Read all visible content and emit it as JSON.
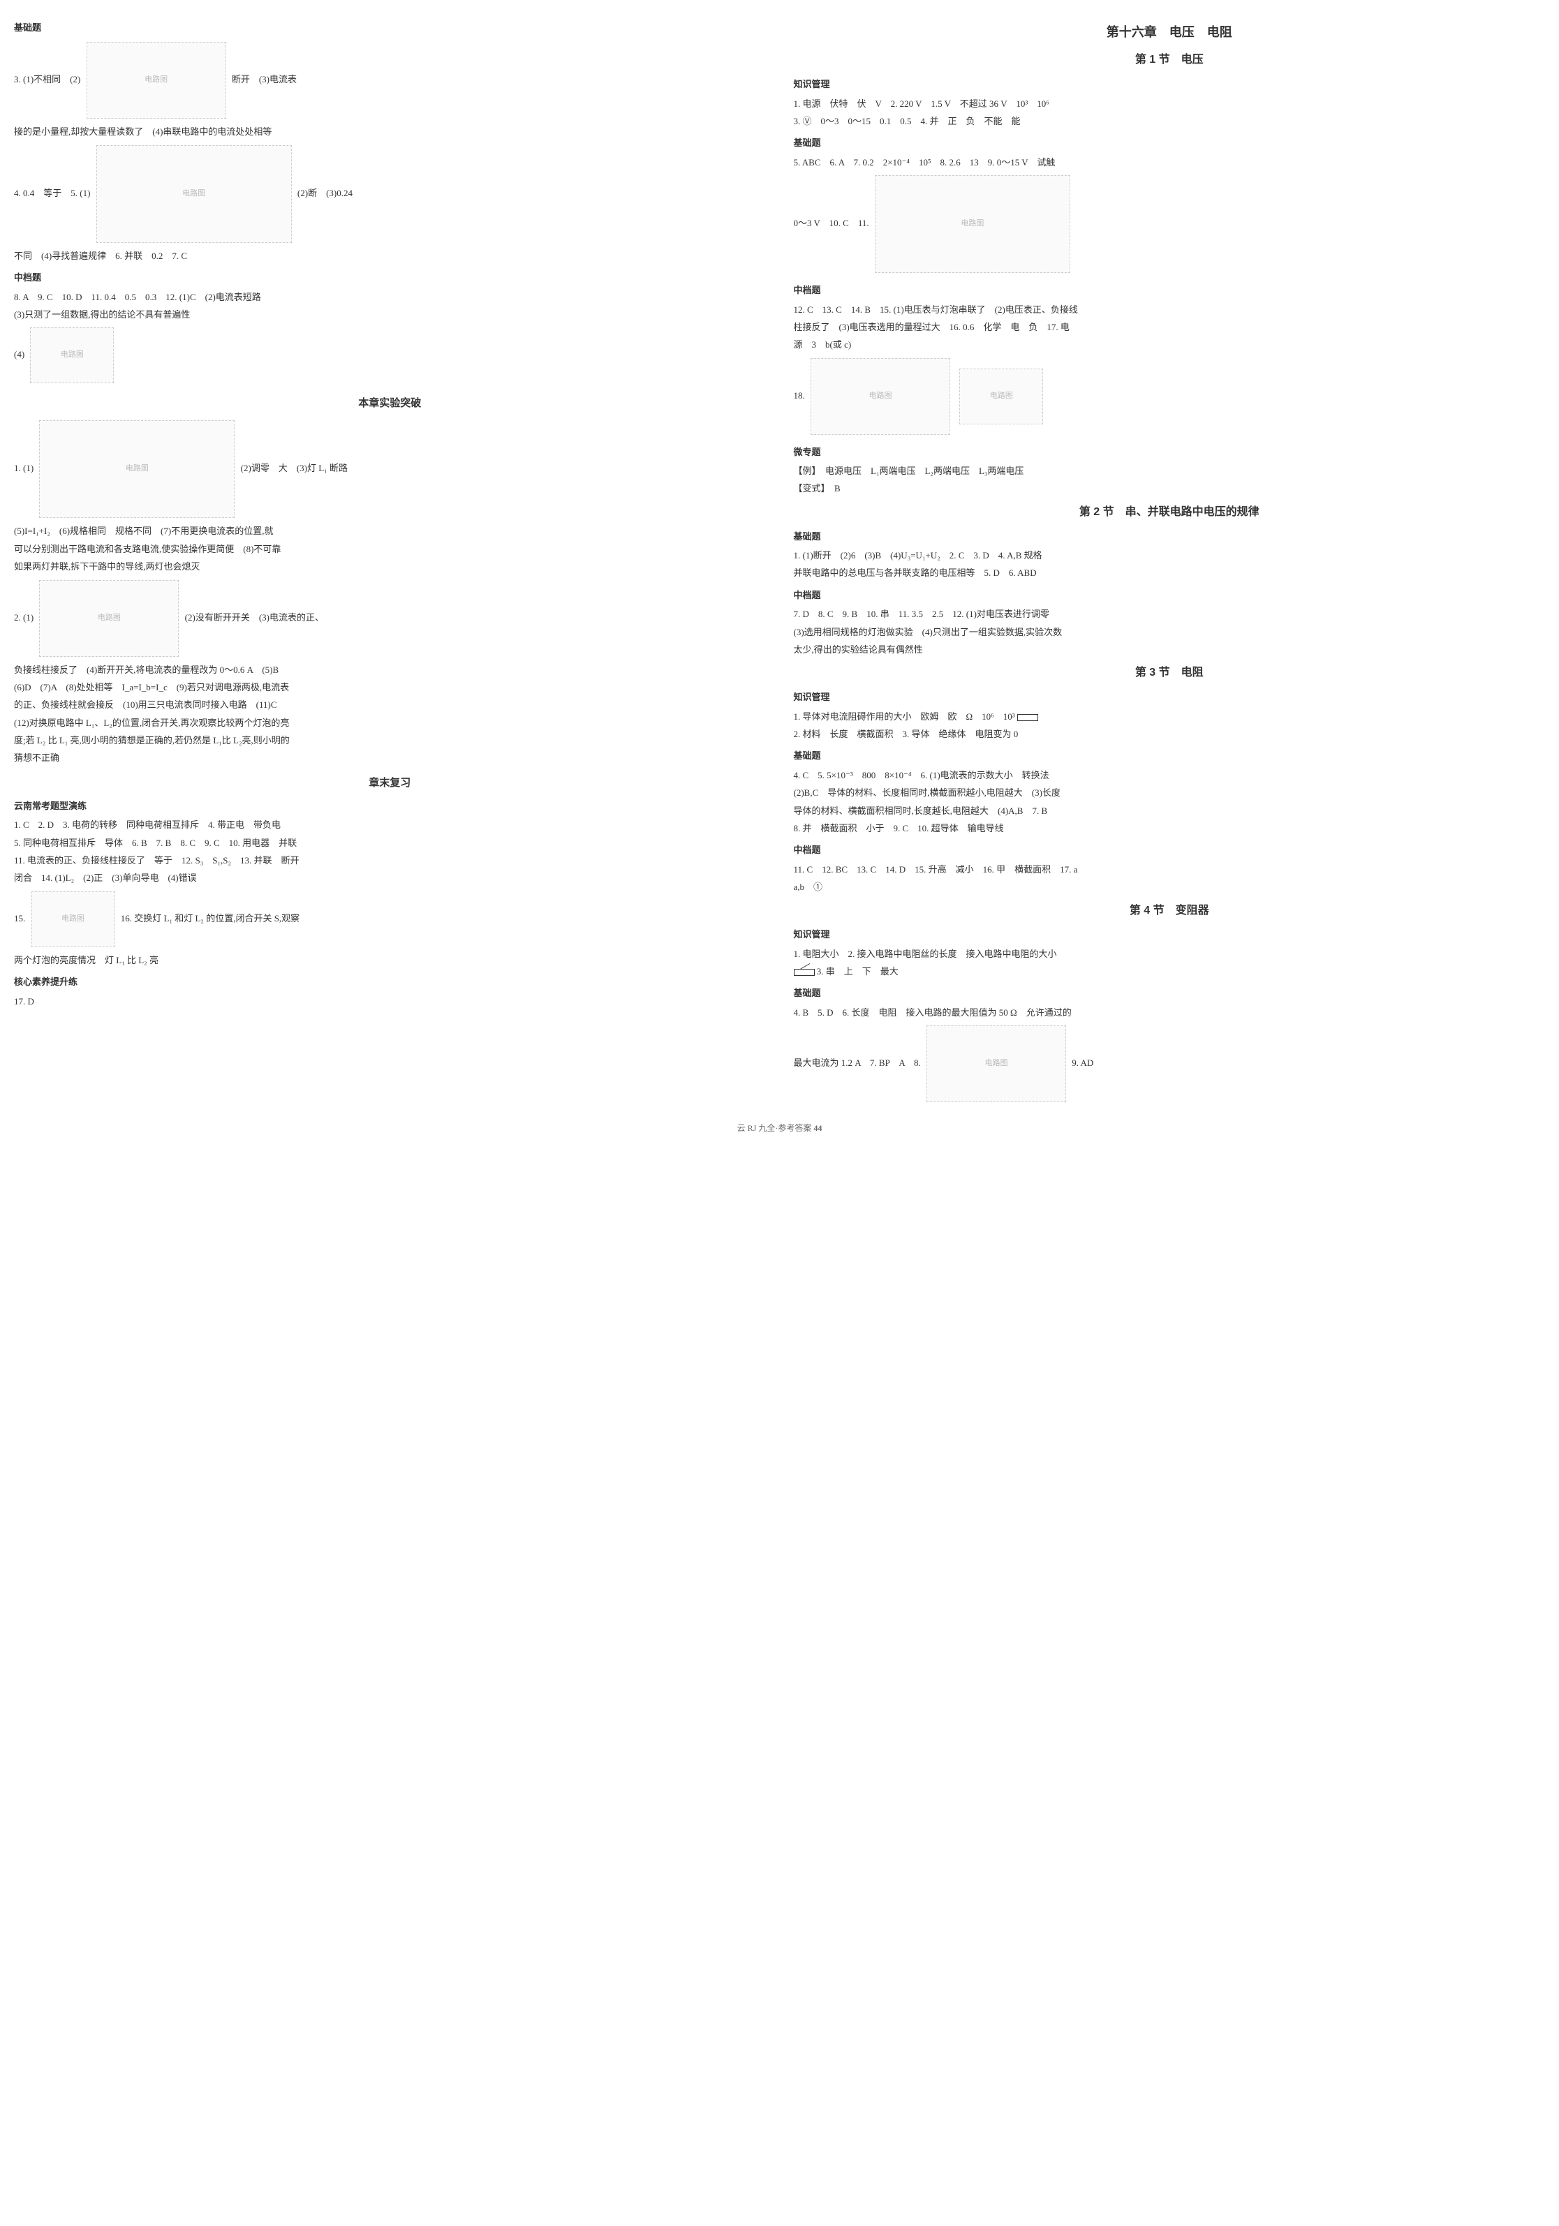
{
  "left_column": {
    "section_jichu": "基础题",
    "q3_part1": "3. (1)不相同　(2)",
    "q3_part2": "断开　(3)电流表",
    "q3_line2": "接的是小量程,却按大量程读数了　(4)串联电路中的电流处处相等",
    "q4_5": "4. 0.4　等于　5. (1)",
    "q5_part2": "(2)断　(3)0.24",
    "q5_line2": "不同　(4)寻找普遍规律　6. 并联　0.2　7. C",
    "section_zhongdang": "中档题",
    "q8_11": "8. A　9. C　10. D　11. 0.4　0.5　0.3　12. (1)C　(2)电流表短路",
    "q12_line2": "(3)只测了一组数据,得出的结论不具有普遍性",
    "q12_line3": "(4)",
    "experiment_title": "本章实验突破",
    "exp1_part1": "1. (1)",
    "exp1_part2": "(2)调零　大　(3)灯 L₁ 断路",
    "exp1_line2": "(5)I=I₁+I₂　(6)规格相同　规格不同　(7)不用更换电流表的位置,就",
    "exp1_line3": "可以分别测出干路电流和各支路电流,使实验操作更简便　(8)不可靠",
    "exp1_line4": "如果两灯并联,拆下干路中的导线,两灯也会熄灭",
    "exp2_part1": "2. (1)",
    "exp2_part2": "(2)没有断开开关　(3)电流表的正、",
    "exp2_line2": "负接线柱接反了　(4)断开开关,将电流表的量程改为 0～0.6 A　(5)B",
    "exp2_line3": "(6)D　(7)A　(8)处处相等　I_a=I_b=I_c　(9)若只对调电源两极,电流表",
    "exp2_line4": "的正、负接线柱就会接反　(10)用三只电流表同时接入电路　(11)C",
    "exp2_line5": "(12)对换原电路中 L₁、L₂的位置,闭合开关,再次观察比较两个灯泡的亮",
    "exp2_line6": "度;若 L₂ 比 L₁ 亮,则小明的猜想是正确的,若仍然是 L₁比 L₂亮,则小明的",
    "exp2_line7": "猜想不正确",
    "review_title": "章末复习",
    "section_yunnan": "云南常考题型演练",
    "rev1": "1. C　2. D　3. 电荷的转移　同种电荷相互排斥　4. 带正电　带负电",
    "rev2": "5. 同种电荷相互排斥　导体　6. B　7. B　8. C　9. C　10. 用电器　并联",
    "rev3": "11. 电流表的正、负接线柱接反了　等于　12. S₃　S₁,S₂　13. 并联　断开",
    "rev4": "闭合　14. (1)L₂　(2)正　(3)单向导电　(4)错误",
    "rev15": "15.",
    "rev16": "16. 交换灯 L₁ 和灯 L₂ 的位置,闭合开关 S,观察",
    "rev16_line2": "两个灯泡的亮度情况　灯 L₁ 比 L₂ 亮",
    "section_hexin": "核心素养提升练",
    "q17": "17. D"
  },
  "right_column": {
    "chapter_title": "第十六章　电压　电阻",
    "sub1_title": "第 1 节　电压",
    "section_zhishi1": "知识管理",
    "k1_line1": "1. 电源　伏特　伏　V　2. 220 V　1.5 V　不超过 36 V　10³　10⁶",
    "k1_line2": "3. Ⓥ　0～3　0～15　0.1　0.5　4. 并　正　负　不能　能",
    "section_jichu1": "基础题",
    "j1_line1": "5. ABC　6. A　7. 0.2　2×10⁻⁴　10⁵　8. 2.6　13　9. 0～15 V　试触",
    "j1_line2": "0～3 V　10. C　11.",
    "section_zhongdang1": "中档题",
    "z1_line1": "12. C　13. C　14. B　15. (1)电压表与灯泡串联了　(2)电压表正、负接线",
    "z1_line2": "柱接反了　(3)电压表选用的量程过大　16. 0.6　化学　电　负　17. 电",
    "z1_line3": "源　3　b(或 c)",
    "z1_line4": "18.",
    "section_weizt": "微专题",
    "wz_line1": "【例】　电源电压　L₁两端电压　L₂两端电压　L₃两端电压",
    "wz_line2": "【变式】　B",
    "sub2_title": "第 2 节　串、并联电路中电压的规律",
    "section_jichu2": "基础题",
    "j2_line1": "1. (1)断开　(2)6　(3)B　(4)U₃=U₁+U₂　2. C　3. D　4. A,B 规格",
    "j2_line2": "并联电路中的总电压与各并联支路的电压相等　5. D　6. ABD",
    "section_zhongdang2": "中档题",
    "z2_line1": "7. D　8. C　9. B　10. 串　11. 3.5　2.5　12. (1)对电压表进行调零",
    "z2_line2": "(3)选用相同规格的灯泡做实验　(4)只测出了一组实验数据,实验次数",
    "z2_line3": "太少,得出的实验结论具有偶然性",
    "sub3_title": "第 3 节　电阻",
    "section_zhishi3": "知识管理",
    "k3_line1": "1. 导体对电流阻碍作用的大小　欧姆　欧　Ω　10⁶　10³",
    "k3_line2": "2. 材料　长度　横截面积　3. 导体　绝缘体　电阻变为 0",
    "section_jichu3": "基础题",
    "j3_line1": "4. C　5. 5×10⁻³　800　8×10⁻⁴　6. (1)电流表的示数大小　转换法",
    "j3_line2": "(2)B,C　导体的材料、长度相同时,横截面积越小,电阻越大　(3)长度",
    "j3_line3": "导体的材料、横截面积相同时,长度越长,电阻越大　(4)A,B　7. B",
    "j3_line4": "8. 并　横截面积　小于　9. C　10. 超导体　输电导线",
    "section_zhongdang3": "中档题",
    "z3_line1": "11. C　12. BC　13. C　14. D　15. 升高　减小　16. 甲　横截面积　17. a",
    "z3_line2": "a,b　①",
    "sub4_title": "第 4 节　变阻器",
    "section_zhishi4": "知识管理",
    "k4_line1": "1. 电阻大小　2. 接入电路中电阻丝的长度　接入电路中电阻的大小",
    "k4_line2": "3. 串　上　下　最大",
    "section_jichu4": "基础题",
    "j4_line1": "4. B　5. D　6. 长度　电阻　接入电路的最大阻值为 50 Ω　允许通过的",
    "j4_line2": "最大电流为 1.2 A　7. BP　A　8.",
    "j4_line3": "9. AD"
  },
  "footer": {
    "text": "云 RJ 九全·参考答案",
    "page": "44"
  }
}
